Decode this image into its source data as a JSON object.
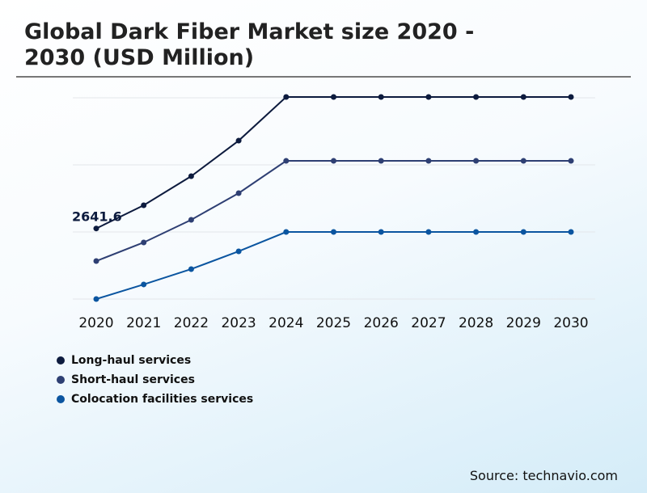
{
  "chart_data": {
    "type": "line",
    "title": "Global Dark Fiber Market size 2020 - 2030 (USD Million)",
    "xlabel": "",
    "ylabel": "",
    "categories": [
      "2020",
      "2021",
      "2022",
      "2023",
      "2024",
      "2025",
      "2026",
      "2027",
      "2028",
      "2029",
      "2030"
    ],
    "grid": true,
    "legend_placement": "bottom-left",
    "series": [
      {
        "name": "Long-haul services",
        "color": "#0d1b3e",
        "values": [
          2641.6,
          2918,
          3265,
          3689,
          4210,
          4210,
          4210,
          4210,
          4210,
          4210,
          4210
        ]
      },
      {
        "name": "Short-haul services",
        "color": "#2e3f73",
        "values": [
          2253,
          2475,
          2745,
          3063,
          3448,
          3448,
          3448,
          3448,
          3448,
          3448,
          3448
        ]
      },
      {
        "name": "Colocation facilities services",
        "color": "#0b55a0",
        "values": [
          1800,
          1974,
          2157,
          2369,
          2600,
          2600,
          2600,
          2600,
          2600,
          2600,
          2600
        ]
      }
    ],
    "annotations": [
      {
        "series": 0,
        "category": "2020",
        "label": "2641.6"
      }
    ]
  },
  "source": "Source: technavio.com"
}
